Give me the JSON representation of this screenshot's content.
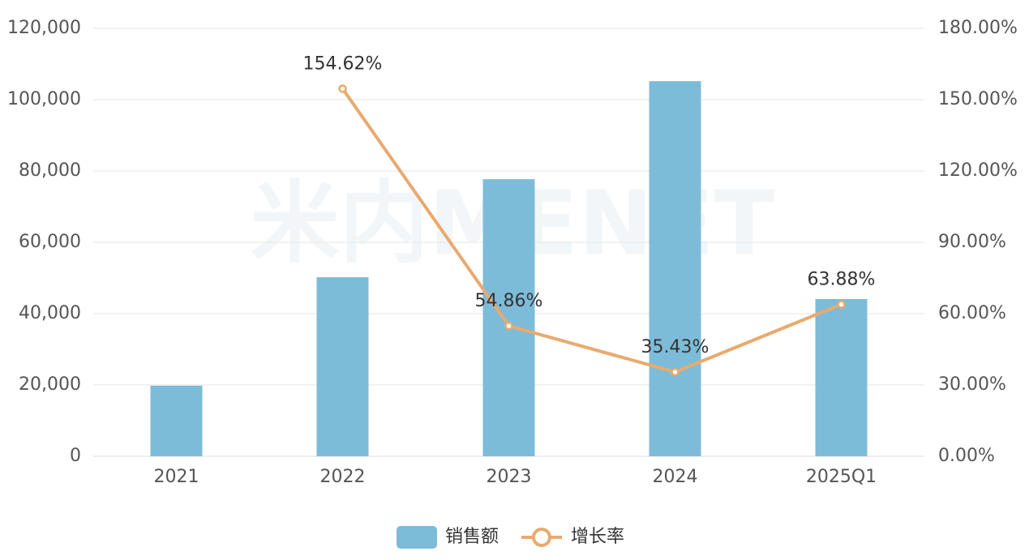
{
  "chart_data": {
    "type": "bar-line",
    "watermark": "米内MENET",
    "categories": [
      "2021",
      "2022",
      "2023",
      "2024",
      "2025Q1"
    ],
    "series": [
      {
        "name": "销售额",
        "type": "bar",
        "color": "#7dbcd9",
        "values": [
          19800,
          50200,
          77700,
          105200,
          44100
        ]
      },
      {
        "name": "增长率",
        "type": "line",
        "axis": "y2",
        "color": "#e8aa6e",
        "values": [
          null,
          154.62,
          54.86,
          35.43,
          63.88
        ],
        "value_labels": [
          null,
          "154.62%",
          "54.86%",
          "35.43%",
          "63.88%"
        ]
      }
    ],
    "ylim": [
      0,
      120000
    ],
    "yticks": [
      0,
      {
        "value": 20000,
        "label": "20,000"
      },
      {
        "value": 40000,
        "label": "40,000"
      },
      {
        "value": 60000,
        "label": "60,000"
      },
      {
        "value": 80000,
        "label": "80,000"
      },
      {
        "value": 100000,
        "label": "100,000"
      },
      {
        "value": 120000,
        "label": "120,000"
      }
    ],
    "y2lim": [
      0,
      180
    ],
    "y2ticks": [
      {
        "value": 0,
        "label": "0.00%"
      },
      {
        "value": 30,
        "label": "30.00%"
      },
      {
        "value": 60,
        "label": "60.00%"
      },
      {
        "value": 90,
        "label": "90.00%"
      },
      {
        "value": 120,
        "label": "120.00%"
      },
      {
        "value": 150,
        "label": "150.00%"
      },
      {
        "value": 180,
        "label": "180.00%"
      }
    ],
    "grid": true,
    "legend": "bottom"
  }
}
